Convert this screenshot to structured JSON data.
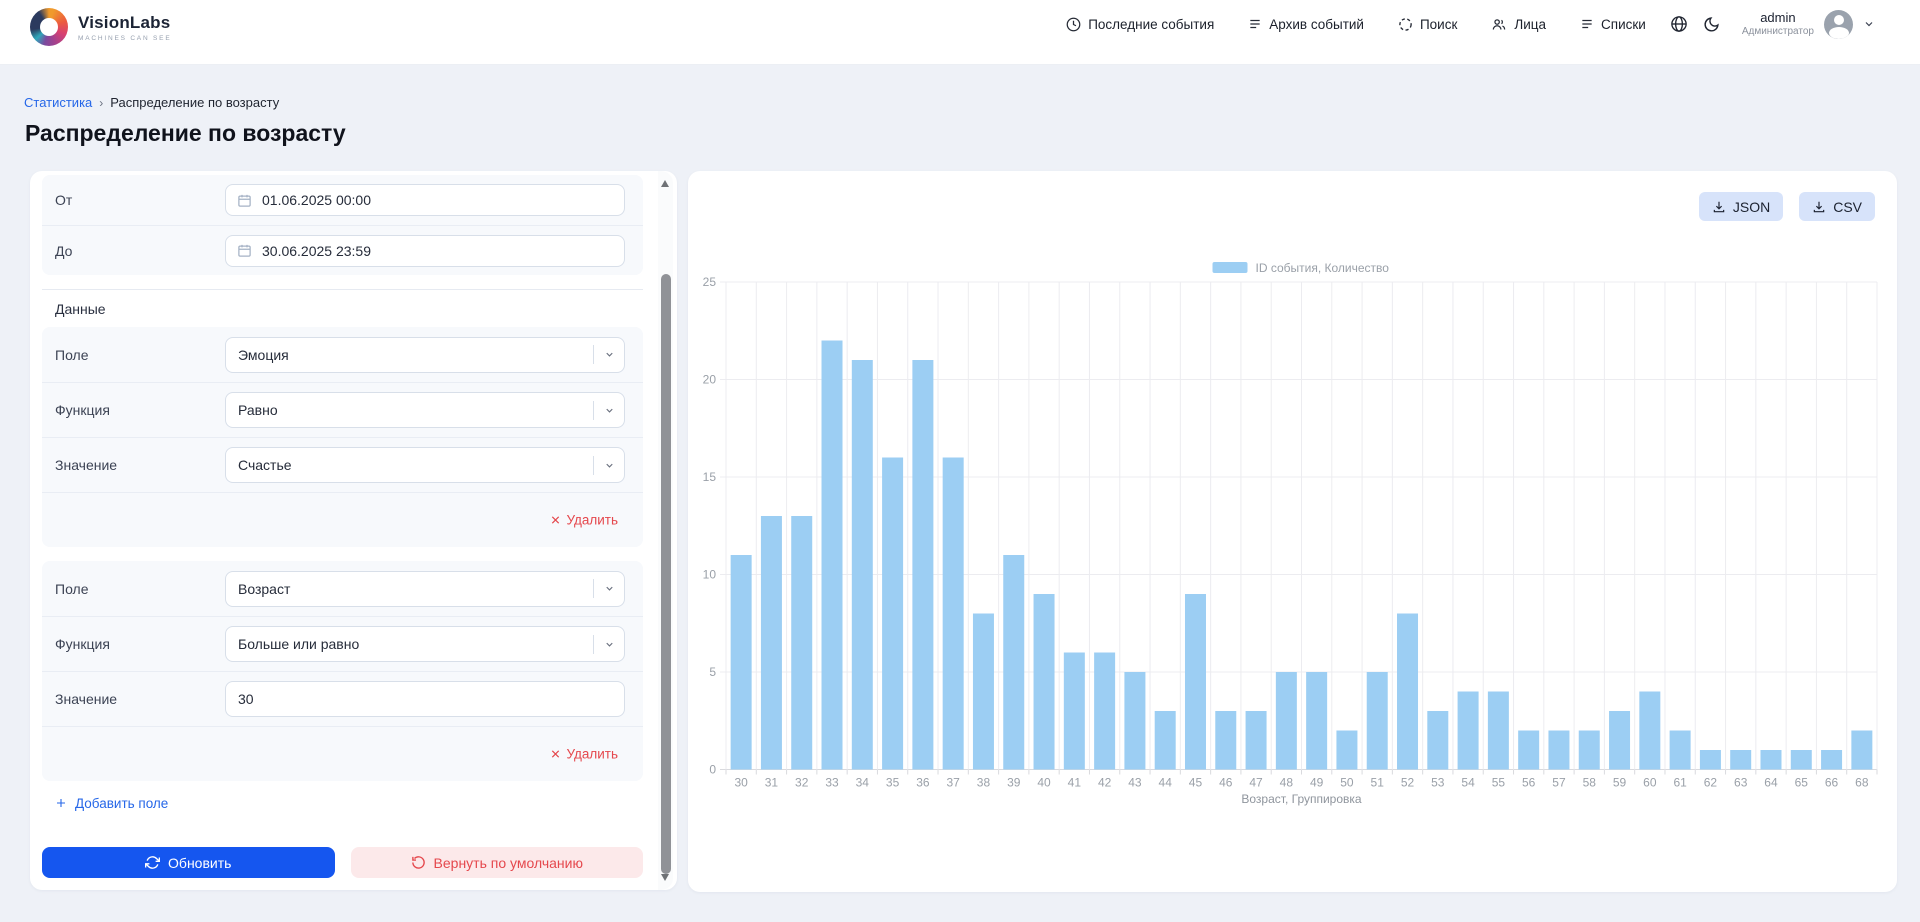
{
  "navbar": {
    "brand": {
      "name": "VisionLabs",
      "tagline": "MACHINES CAN SEE"
    },
    "items": [
      {
        "label": "Последние события",
        "icon": "clock"
      },
      {
        "label": "Архив событий",
        "icon": "list"
      },
      {
        "label": "Поиск",
        "icon": "scan"
      },
      {
        "label": "Лица",
        "icon": "people"
      },
      {
        "label": "Списки",
        "icon": "list"
      }
    ],
    "user": {
      "name": "admin",
      "role": "Администратор"
    }
  },
  "breadcrumb": {
    "parent": "Статистика",
    "current": "Распределение по возрасту"
  },
  "page_title": "Распределение по возрасту",
  "filters": {
    "from_label": "От",
    "from_value": "01.06.2025 00:00",
    "to_label": "До",
    "to_value": "30.06.2025 23:59",
    "section_label": "Данные",
    "groups": [
      {
        "rows": [
          {
            "label": "Поле",
            "value": "Эмоция"
          },
          {
            "label": "Функция",
            "value": "Равно"
          },
          {
            "label": "Значение",
            "value": "Счастье"
          }
        ],
        "delete_label": "Удалить"
      },
      {
        "rows": [
          {
            "label": "Поле",
            "value": "Возраст"
          },
          {
            "label": "Функция",
            "value": "Больше или равно"
          },
          {
            "label": "Значение",
            "value": "30"
          }
        ],
        "delete_label": "Удалить"
      }
    ],
    "add_field_label": "Добавить поле",
    "submit_label": "Обновить",
    "reset_label": "Вернуть по умолчанию"
  },
  "export": {
    "json_label": "JSON",
    "csv_label": "CSV"
  },
  "chart_data": {
    "type": "bar",
    "legend": "ID события, Количество",
    "categories": [
      30,
      31,
      32,
      33,
      34,
      35,
      36,
      37,
      38,
      39,
      40,
      41,
      42,
      43,
      44,
      45,
      46,
      47,
      48,
      49,
      50,
      51,
      52,
      53,
      54,
      55,
      56,
      57,
      58,
      59,
      60,
      61,
      62,
      63,
      64,
      65,
      66,
      68
    ],
    "values": [
      11,
      13,
      13,
      22,
      21,
      16,
      21,
      16,
      8,
      11,
      9,
      6,
      6,
      5,
      3,
      9,
      3,
      3,
      5,
      5,
      2,
      5,
      8,
      3,
      4,
      4,
      2,
      2,
      2,
      3,
      4,
      2,
      1,
      1,
      1,
      1,
      1,
      2
    ],
    "xlabel": "Возраст, Группировка",
    "ylim": [
      0,
      25
    ],
    "yticks": [
      0,
      5,
      10,
      15,
      20,
      25
    ],
    "bar_color": "#9CCEF3",
    "grid_color": "#ececf0",
    "tick_color": "#9aa0a8"
  }
}
